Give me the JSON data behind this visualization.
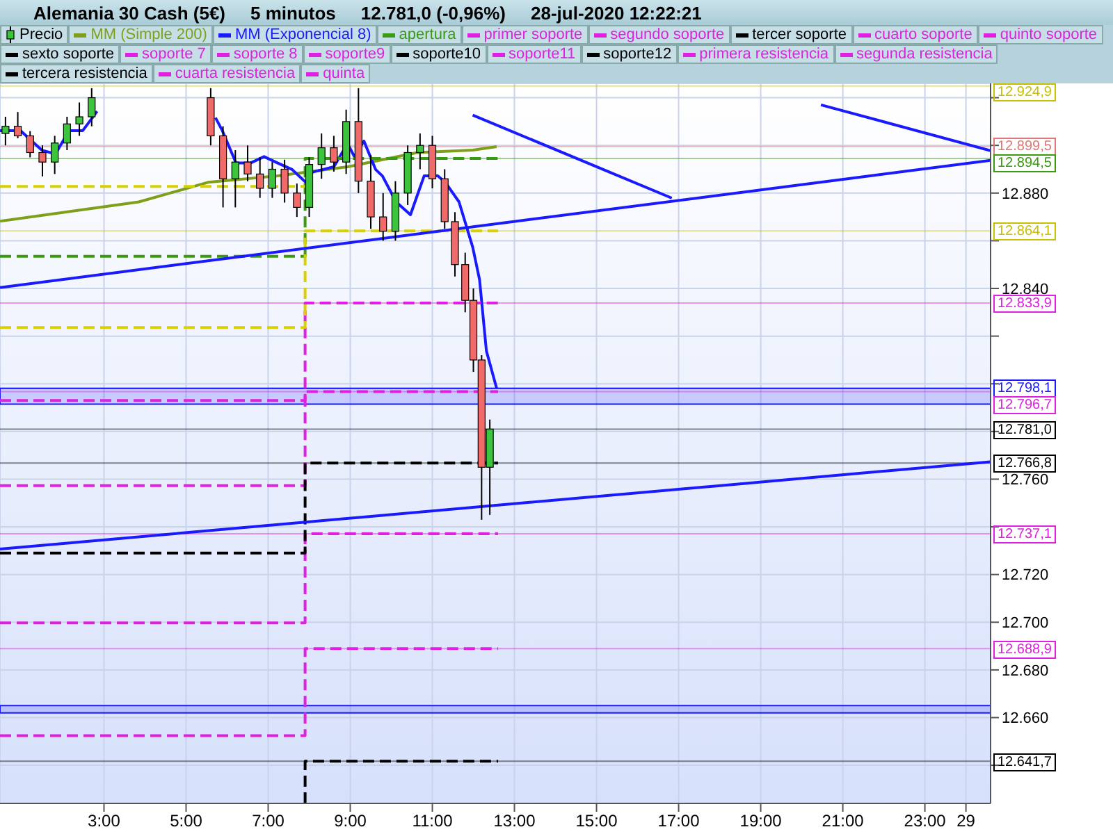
{
  "chart_data": {
    "type": "candlestick",
    "title": "Alemania 30 Cash (5€)",
    "annotations": [
      "5 minutos",
      "12.781,0 (-0,96%)",
      "28-jul-2020 12:22:21"
    ],
    "xlim": [
      "2020-07-28T00:28",
      "2020-07-29T00:36"
    ],
    "xticks": [
      {
        "value": "2020-07-28T03:00",
        "label": "3:00"
      },
      {
        "value": "2020-07-28T05:00",
        "label": "5:00"
      },
      {
        "value": "2020-07-28T07:00",
        "label": "7:00"
      },
      {
        "value": "2020-07-28T09:00",
        "label": "9:00"
      },
      {
        "value": "2020-07-28T11:00",
        "label": "11:00"
      },
      {
        "value": "2020-07-28T13:00",
        "label": "13:00"
      },
      {
        "value": "2020-07-28T15:00",
        "label": "15:00"
      },
      {
        "value": "2020-07-28T17:00",
        "label": "17:00"
      },
      {
        "value": "2020-07-28T19:00",
        "label": "19:00"
      },
      {
        "value": "2020-07-28T21:00",
        "label": "21:00"
      },
      {
        "value": "2020-07-28T23:00",
        "label": "23:00"
      },
      {
        "value": "2020-07-29",
        "label": "29"
      }
    ],
    "ylim": [
      12624,
      12926
    ],
    "yticks": [
      {
        "value": 12640,
        "label": null
      },
      {
        "value": 12660,
        "label": "12.660"
      },
      {
        "value": 12680,
        "label": "12.680"
      },
      {
        "value": 12700,
        "label": "12.700"
      },
      {
        "value": 12720,
        "label": "12.720"
      },
      {
        "value": 12740,
        "label": null
      },
      {
        "value": 12760,
        "label": "12.760"
      },
      {
        "value": 12780,
        "label": null
      },
      {
        "value": 12800,
        "label": null
      },
      {
        "value": 12820,
        "label": null
      },
      {
        "value": 12840,
        "label": "12.840"
      },
      {
        "value": 12860,
        "label": null
      },
      {
        "value": 12880,
        "label": "12.880"
      },
      {
        "value": 12900,
        "label": null
      },
      {
        "value": 12920,
        "label": null
      }
    ],
    "grid": true,
    "legend": "top",
    "series": [
      {
        "name": "Precio",
        "color": "#000000",
        "x": [
          "2020-07-28T00:36",
          "2020-07-28T00:54",
          "2020-07-28T01:12",
          "2020-07-28T01:30",
          "2020-07-28T01:48",
          "2020-07-28T02:06",
          "2020-07-28T02:24",
          "2020-07-28T02:42",
          "2020-07-28T05:36",
          "2020-07-28T05:54",
          "2020-07-28T06:12",
          "2020-07-28T06:30",
          "2020-07-28T06:48",
          "2020-07-28T07:06",
          "2020-07-28T07:24",
          "2020-07-28T07:42",
          "2020-07-28T08:00",
          "2020-07-28T08:18",
          "2020-07-28T08:36",
          "2020-07-28T08:54",
          "2020-07-28T09:12",
          "2020-07-28T09:30",
          "2020-07-28T09:48",
          "2020-07-28T10:06",
          "2020-07-28T10:24",
          "2020-07-28T10:42",
          "2020-07-28T11:00",
          "2020-07-28T11:18",
          "2020-07-28T11:33",
          "2020-07-28T11:48",
          "2020-07-28T12:00",
          "2020-07-28T12:12",
          "2020-07-28T12:24"
        ],
        "ohlc": [
          [
            12905,
            12912,
            12900,
            12908
          ],
          [
            12908,
            12914,
            12903,
            12904
          ],
          [
            12904,
            12906,
            12895,
            12897
          ],
          [
            12897,
            12900,
            12887,
            12893
          ],
          [
            12893,
            12904,
            12888,
            12901
          ],
          [
            12901,
            12912,
            12898,
            12909
          ],
          [
            12909,
            12918,
            12904,
            12912
          ],
          [
            12912,
            12924,
            12908,
            12920
          ],
          [
            12920,
            12924,
            12900,
            12904
          ],
          [
            12904,
            12908,
            12874,
            12886
          ],
          [
            12886,
            12898,
            12874,
            12893
          ],
          [
            12893,
            12900,
            12885,
            12888
          ],
          [
            12888,
            12895,
            12878,
            12882
          ],
          [
            12882,
            12893,
            12878,
            12890
          ],
          [
            12890,
            12894,
            12876,
            12880
          ],
          [
            12880,
            12884,
            12870,
            12874
          ],
          [
            12874,
            12895,
            12870,
            12892
          ],
          [
            12892,
            12905,
            12886,
            12899
          ],
          [
            12899,
            12904,
            12889,
            12893
          ],
          [
            12893,
            12915,
            12888,
            12910
          ],
          [
            12910,
            12924,
            12880,
            12885
          ],
          [
            12885,
            12896,
            12865,
            12870
          ],
          [
            12870,
            12880,
            12860,
            12864
          ],
          [
            12864,
            12885,
            12860,
            12880
          ],
          [
            12880,
            12900,
            12875,
            12897
          ],
          [
            12897,
            12905,
            12890,
            12900
          ],
          [
            12900,
            12904,
            12882,
            12886
          ],
          [
            12886,
            12890,
            12865,
            12868
          ],
          [
            12868,
            12872,
            12845,
            12850
          ],
          [
            12850,
            12855,
            12830,
            12835
          ],
          [
            12835,
            12840,
            12805,
            12810
          ],
          [
            12810,
            12812,
            12743,
            12765
          ],
          [
            12765,
            12785,
            12745,
            12781
          ]
        ],
        "colors": [
          "#3cc43c",
          "#f06a6a",
          "#f06a6a",
          "#f06a6a",
          "#3cc43c",
          "#3cc43c",
          "#3cc43c",
          "#3cc43c",
          "#f06a6a",
          "#f06a6a",
          "#3cc43c",
          "#f06a6a",
          "#f06a6a",
          "#3cc43c",
          "#f06a6a",
          "#f06a6a",
          "#3cc43c",
          "#3cc43c",
          "#f06a6a",
          "#3cc43c",
          "#f06a6a",
          "#f06a6a",
          "#f06a6a",
          "#3cc43c",
          "#3cc43c",
          "#3cc43c",
          "#f06a6a",
          "#f06a6a",
          "#f06a6a",
          "#f06a6a",
          "#f06a6a",
          "#f06a6a",
          "#3cc43c"
        ]
      },
      {
        "name": "MM (Simple 200)",
        "type": "line",
        "color": "#7f9f1a",
        "x": [
          "2020-07-28T00:28",
          "2020-07-28T03:51",
          "2020-07-28T05:32",
          "2020-07-28T07:14",
          "2020-07-28T08:56",
          "2020-07-28T10:38",
          "2020-07-28T11:19",
          "2020-07-28T11:59",
          "2020-07-28T12:34"
        ],
        "values": [
          12868.2,
          12876.3,
          12884.5,
          12887.2,
          12891,
          12897,
          12897.5,
          12898,
          12899.5
        ]
      },
      {
        "name": "MM (Exponencial 8)",
        "type": "line",
        "color": "#1a1aff",
        "x": [
          "2020-07-28T00:28",
          "2020-07-28T00:58",
          "2020-07-28T01:29",
          "2020-07-28T01:49",
          "2020-07-28T02:09",
          "2020-07-28T02:29",
          "2020-07-28T02:50",
          "2020-07-28T04:00",
          "2020-07-28T05:43",
          "2020-07-28T05:53",
          "2020-07-28T06:13",
          "2020-07-28T06:34",
          "2020-07-28T06:54",
          "2020-07-28T07:14",
          "2020-07-28T07:35",
          "2020-07-28T07:55",
          "2020-07-28T08:05",
          "2020-07-28T08:36",
          "2020-07-28T08:56",
          "2020-07-28T09:06",
          "2020-07-28T09:20",
          "2020-07-28T09:37",
          "2020-07-28T09:47",
          "2020-07-28T10:07",
          "2020-07-28T10:28",
          "2020-07-28T10:48",
          "2020-07-28T11:08",
          "2020-07-28T11:19",
          "2020-07-28T11:39",
          "2020-07-28T11:59",
          "2020-07-28T12:09",
          "2020-07-28T12:19",
          "2020-07-28T12:34"
        ],
        "values": [
          12906.2,
          12906.2,
          12898,
          12896.4,
          12906.2,
          12906.2,
          12914.3,
          null,
          12911.6,
          12906.2,
          12892.6,
          12892.6,
          12895.3,
          12892.6,
          12889.9,
          12884.5,
          12888.8,
          12891,
          12900.8,
          12895.3,
          12901.8,
          12889.9,
          12887.2,
          12876.3,
          12870.9,
          12887.2,
          12887.2,
          12884.5,
          12876.3,
          12857.3,
          12843.7,
          12813.8,
          12798.1
        ]
      },
      {
        "name": "apertura",
        "type": "line",
        "line_style": "dashed",
        "color": "#3a9a10",
        "x": [
          "2020-07-28T00:28",
          "2020-07-28T07:54",
          "2020-07-28T07:54",
          "2020-07-28T12:36"
        ],
        "values": [
          12853.5,
          12853.5,
          12894.5,
          12894.5
        ]
      },
      {
        "name": "primer soporte",
        "type": "line",
        "line_style": "dashed",
        "color": "#e020e0",
        "x": [
          "2020-07-28T00:28",
          "2020-07-28T07:54",
          "2020-07-28T07:54",
          "2020-07-28T12:36"
        ],
        "values": [
          12757.3,
          12757.3,
          12796.7,
          12796.7
        ]
      },
      {
        "name": "segundo soporte",
        "type": "line",
        "line_style": "dashed",
        "color": "#e020e0",
        "x": [
          "2020-07-28T00:28",
          "2020-07-28T07:54",
          "2020-07-28T07:54",
          "2020-07-28T12:36"
        ],
        "values": [
          12699.7,
          12699.7,
          12737.1,
          12737.1
        ]
      },
      {
        "name": "tercer soporte",
        "type": "line",
        "line_style": "dashed",
        "color": "#000000",
        "x": [
          "2020-07-28T00:28",
          "2020-07-28T07:54",
          "2020-07-28T07:54",
          "2020-07-28T12:36"
        ],
        "values": [
          12729,
          12729,
          12766.8,
          12766.8
        ]
      },
      {
        "name": "cuarto soporte",
        "type": "line",
        "line_style": "dashed",
        "color": "#e020e0",
        "x": [
          "2020-07-28T00:28",
          "2020-07-28T07:54",
          "2020-07-28T07:54",
          "2020-07-28T12:36"
        ],
        "values": [
          12652.4,
          12652.4,
          12688.9,
          12688.9
        ]
      },
      {
        "name": "quinto soporte",
        "type": "line",
        "color": "#e020e0"
      },
      {
        "name": "sexto soporte",
        "type": "line",
        "line_style": "dashed",
        "color": "#000000",
        "x": [
          "2020-07-28T07:54",
          "2020-07-28T07:54",
          "2020-07-28T12:36"
        ],
        "values": [
          12624,
          12641.7,
          12641.7
        ]
      },
      {
        "name": "soporte 7",
        "type": "line",
        "color": "#e020e0"
      },
      {
        "name": "soporte 8",
        "type": "line",
        "color": "#e020e0"
      },
      {
        "name": "soporte9",
        "type": "line",
        "color": "#e020e0"
      },
      {
        "name": "soporte10",
        "type": "line",
        "color": "#000000"
      },
      {
        "name": "soporte11",
        "type": "line",
        "color": "#e020e0"
      },
      {
        "name": "soporte12",
        "type": "line",
        "color": "#000000"
      },
      {
        "name": "primera resistencia",
        "type": "line",
        "line_style": "dashed",
        "color": "#e020e0",
        "x": [
          "2020-07-28T00:28",
          "2020-07-28T07:54",
          "2020-07-28T07:54",
          "2020-07-28T12:36"
        ],
        "values": [
          12793,
          12793,
          12833.9,
          12833.9
        ]
      },
      {
        "name": "segunda resistencia",
        "type": "line",
        "color": "#e020e0"
      },
      {
        "name": "tercera resistencia",
        "type": "line",
        "color": "#000000"
      },
      {
        "name": "cuarta resistencia",
        "type": "line",
        "color": "#e020e0"
      },
      {
        "name": "quinta",
        "type": "line",
        "color": "#e020e0"
      },
      {
        "type": "line",
        "line_style": "dashed",
        "color": "#d8d000",
        "x": [
          "2020-07-28T00:28",
          "2020-07-28T07:54"
        ],
        "values": [
          12882.8,
          12882.8
        ]
      },
      {
        "type": "line",
        "line_style": "dashed",
        "color": "#d8d000",
        "x": [
          "2020-07-28T00:28",
          "2020-07-28T07:54",
          "2020-07-28T07:54",
          "2020-07-28T12:36"
        ],
        "values": [
          12823.6,
          12823.6,
          12864.1,
          12864.1
        ]
      },
      {
        "type": "line",
        "color": "#1a1aff",
        "x": [
          "2020-07-28T00:28",
          "2020-07-29T00:36"
        ],
        "values": [
          12840.4,
          12893.7
        ]
      },
      {
        "type": "line",
        "color": "#1a1aff",
        "x": [
          "2020-07-28T00:28",
          "2020-07-29T00:36"
        ],
        "values": [
          12730.7,
          12767.3
        ]
      },
      {
        "type": "line",
        "color": "#1a1aff",
        "x": [
          "2020-07-28T11:59",
          "2020-07-28T16:50"
        ],
        "values": [
          12912.7,
          12877.9
        ]
      },
      {
        "type": "line",
        "color": "#1a1aff",
        "x": [
          "2020-07-28T20:28",
          "2020-07-29T00:36"
        ],
        "values": [
          12917,
          12897.8
        ]
      }
    ],
    "bands": [
      {
        "axis": "y",
        "from": 12791.5,
        "to": 12798.1,
        "color": "#1a1aff"
      },
      {
        "axis": "y",
        "from": 12662,
        "to": 12665,
        "color": "#1a1aff"
      }
    ],
    "ref_lines": [
      {
        "axis": "y",
        "value": 12924.9,
        "label": "12.924,9",
        "color": "#c8c000"
      },
      {
        "axis": "y",
        "value": 12899.5,
        "label": "12.899,5",
        "color": "#e07878"
      },
      {
        "axis": "y",
        "value": 12894.5,
        "label": "12.894,5",
        "color": "#3a9a10"
      },
      {
        "axis": "y",
        "value": 12864.1,
        "label": "12.864,1",
        "color": "#c8c000"
      },
      {
        "axis": "y",
        "value": 12833.9,
        "label": "12.833,9",
        "color": "#e020e0"
      },
      {
        "axis": "y",
        "value": 12798.1,
        "label": "12.798,1",
        "color": "#1a1aff"
      },
      {
        "axis": "y",
        "value": 12796.7,
        "label": "12.796,7",
        "color": "#e020e0"
      },
      {
        "axis": "y",
        "value": 12781,
        "label": "12.781,0",
        "color": "#000000"
      },
      {
        "axis": "y",
        "value": 12766.8,
        "label": "12.766,8",
        "color": "#000000"
      },
      {
        "axis": "y",
        "value": 12737.1,
        "label": "12.737,1",
        "color": "#e020e0"
      },
      {
        "axis": "y",
        "value": 12688.9,
        "label": "12.688,9",
        "color": "#e020e0"
      },
      {
        "axis": "y",
        "value": 12641.7,
        "label": "12.641,7",
        "color": "#000000"
      }
    ]
  }
}
